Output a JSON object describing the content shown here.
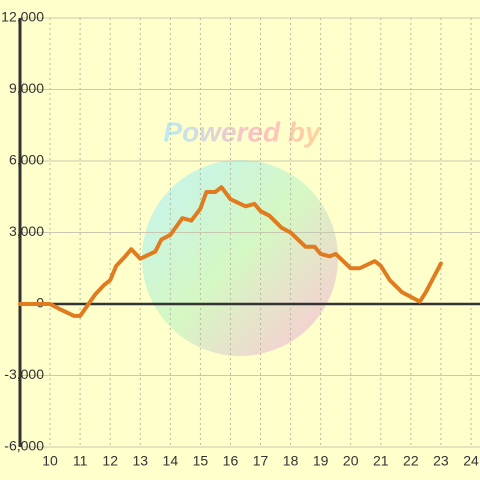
{
  "chart_data": {
    "type": "line",
    "watermark": "Powered by",
    "x": [
      9,
      9.5,
      10,
      10.3,
      10.8,
      11,
      11.5,
      11.8,
      12,
      12.2,
      12.5,
      12.7,
      13,
      13.5,
      13.7,
      14,
      14.4,
      14.7,
      15,
      15.2,
      15.5,
      15.7,
      16,
      16.5,
      16.8,
      17,
      17.3,
      17.7,
      18,
      18.5,
      18.8,
      19,
      19.3,
      19.5,
      20,
      20.3,
      20.8,
      21,
      21.3,
      21.7,
      22,
      22.3,
      22.5,
      23
    ],
    "series": [
      {
        "color": "#e07b20",
        "values": [
          0,
          0,
          0,
          -200,
          -500,
          -500,
          400,
          800,
          1000,
          1600,
          2000,
          2300,
          1900,
          2200,
          2700,
          2900,
          3600,
          3500,
          4000,
          4700,
          4700,
          4900,
          4400,
          4100,
          4200,
          3900,
          3700,
          3200,
          3000,
          2400,
          2400,
          2100,
          2000,
          2100,
          1500,
          1500,
          1800,
          1600,
          1000,
          500,
          300,
          100,
          500,
          1700
        ]
      }
    ],
    "xlim": [
      9,
      24.3
    ],
    "xticks": [
      10,
      11,
      12,
      13,
      14,
      15,
      16,
      17,
      18,
      19,
      20,
      21,
      22,
      23,
      24
    ],
    "ylim": [
      -6000,
      12000
    ],
    "yticks": [
      {
        "value": -6000,
        "label": "-6,000"
      },
      {
        "value": -3000,
        "label": "-3,000"
      },
      0,
      {
        "value": 3000,
        "label": "3,000"
      },
      {
        "value": 6000,
        "label": "6,000"
      },
      {
        "value": 9000,
        "label": "9,000"
      },
      {
        "value": 12000,
        "label": "12,000"
      }
    ],
    "grid": true
  }
}
